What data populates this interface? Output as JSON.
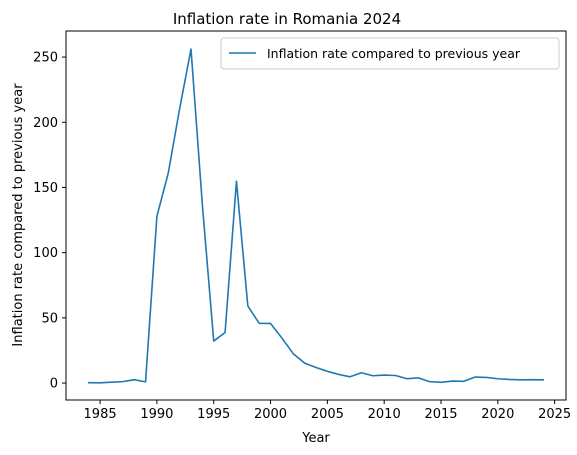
{
  "chart_data": {
    "type": "line",
    "title": "Inflation rate in Romania 2024",
    "xlabel": "Year",
    "ylabel": "Inflation rate compared to previous year",
    "xlim": [
      1982,
      2026
    ],
    "ylim": [
      -13,
      270
    ],
    "xticks": [
      1985,
      1990,
      1995,
      2000,
      2005,
      2010,
      2015,
      2020,
      2025
    ],
    "yticks": [
      0,
      50,
      100,
      150,
      200,
      250
    ],
    "legend": "top-right",
    "grid": false,
    "series": [
      {
        "name": "Inflation rate compared to previous year",
        "color": "#1f77b4",
        "x": [
          1984,
          1985,
          1986,
          1987,
          1988,
          1989,
          1990,
          1991,
          1992,
          1993,
          1994,
          1995,
          1996,
          1997,
          1998,
          1999,
          2000,
          2001,
          2002,
          2003,
          2004,
          2005,
          2006,
          2007,
          2008,
          2009,
          2010,
          2011,
          2012,
          2013,
          2014,
          2015,
          2016,
          2017,
          2018,
          2019,
          2020,
          2021,
          2022,
          2023,
          2024
        ],
        "y": [
          0.3,
          0.2,
          0.7,
          1.1,
          2.6,
          0.9,
          127.9,
          161.1,
          210.4,
          256.1,
          136.7,
          32.2,
          38.8,
          154.8,
          59.1,
          45.8,
          45.7,
          34.5,
          22.5,
          15.3,
          11.9,
          9.0,
          6.6,
          4.8,
          7.9,
          5.6,
          6.1,
          5.8,
          3.3,
          4.0,
          1.1,
          0.6,
          1.5,
          1.3,
          4.6,
          4.3,
          3.3,
          2.8,
          2.5,
          2.6,
          2.5
        ]
      }
    ]
  }
}
